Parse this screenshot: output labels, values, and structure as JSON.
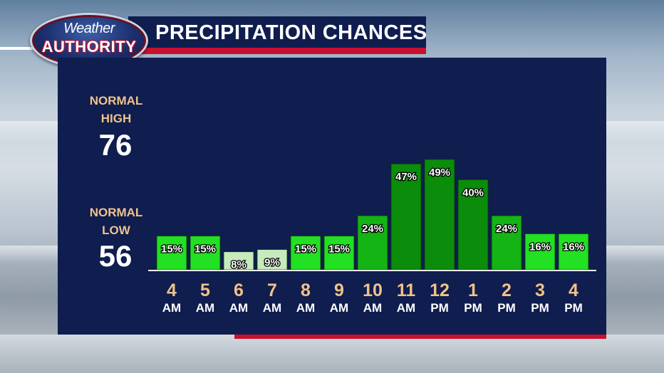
{
  "title": "PRECIPITATION CHANCES",
  "logo": {
    "line1": "Weather",
    "line2": "AUTHORITY"
  },
  "normals": {
    "high": {
      "label_line1": "NORMAL",
      "label_line2": "HIGH",
      "value": "76"
    },
    "low": {
      "label_line1": "NORMAL",
      "label_line2": "LOW",
      "value": "56"
    }
  },
  "colors": {
    "panel": "#0f1d4f",
    "accent_red": "#c8102e",
    "label_tan": "#f1c28a",
    "bar_bright": "#22e022",
    "bar_medium": "#14b414",
    "bar_dark": "#0b8c0b",
    "bar_light": "#c6ebbd"
  },
  "chart_data": {
    "type": "bar",
    "title": "PRECIPITATION CHANCES",
    "categories": [
      "4 AM",
      "5 AM",
      "6 AM",
      "7 AM",
      "8 AM",
      "9 AM",
      "10 AM",
      "11 AM",
      "12 PM",
      "1 PM",
      "2 PM",
      "3 PM",
      "4 PM"
    ],
    "hours": [
      "4",
      "5",
      "6",
      "7",
      "8",
      "9",
      "10",
      "11",
      "12",
      "1",
      "2",
      "3",
      "4"
    ],
    "periods": [
      "AM",
      "AM",
      "AM",
      "AM",
      "AM",
      "AM",
      "AM",
      "AM",
      "PM",
      "PM",
      "PM",
      "PM",
      "PM"
    ],
    "values": [
      15,
      15,
      8,
      9,
      15,
      15,
      24,
      47,
      49,
      40,
      24,
      16,
      16
    ],
    "labels": [
      "15%",
      "15%",
      "8%",
      "9%",
      "15%",
      "15%",
      "24%",
      "47%",
      "49%",
      "40%",
      "24%",
      "16%",
      "16%"
    ],
    "ylim": [
      0,
      55
    ],
    "xlabel": "",
    "ylabel": "",
    "grid": false,
    "legend": "none"
  }
}
